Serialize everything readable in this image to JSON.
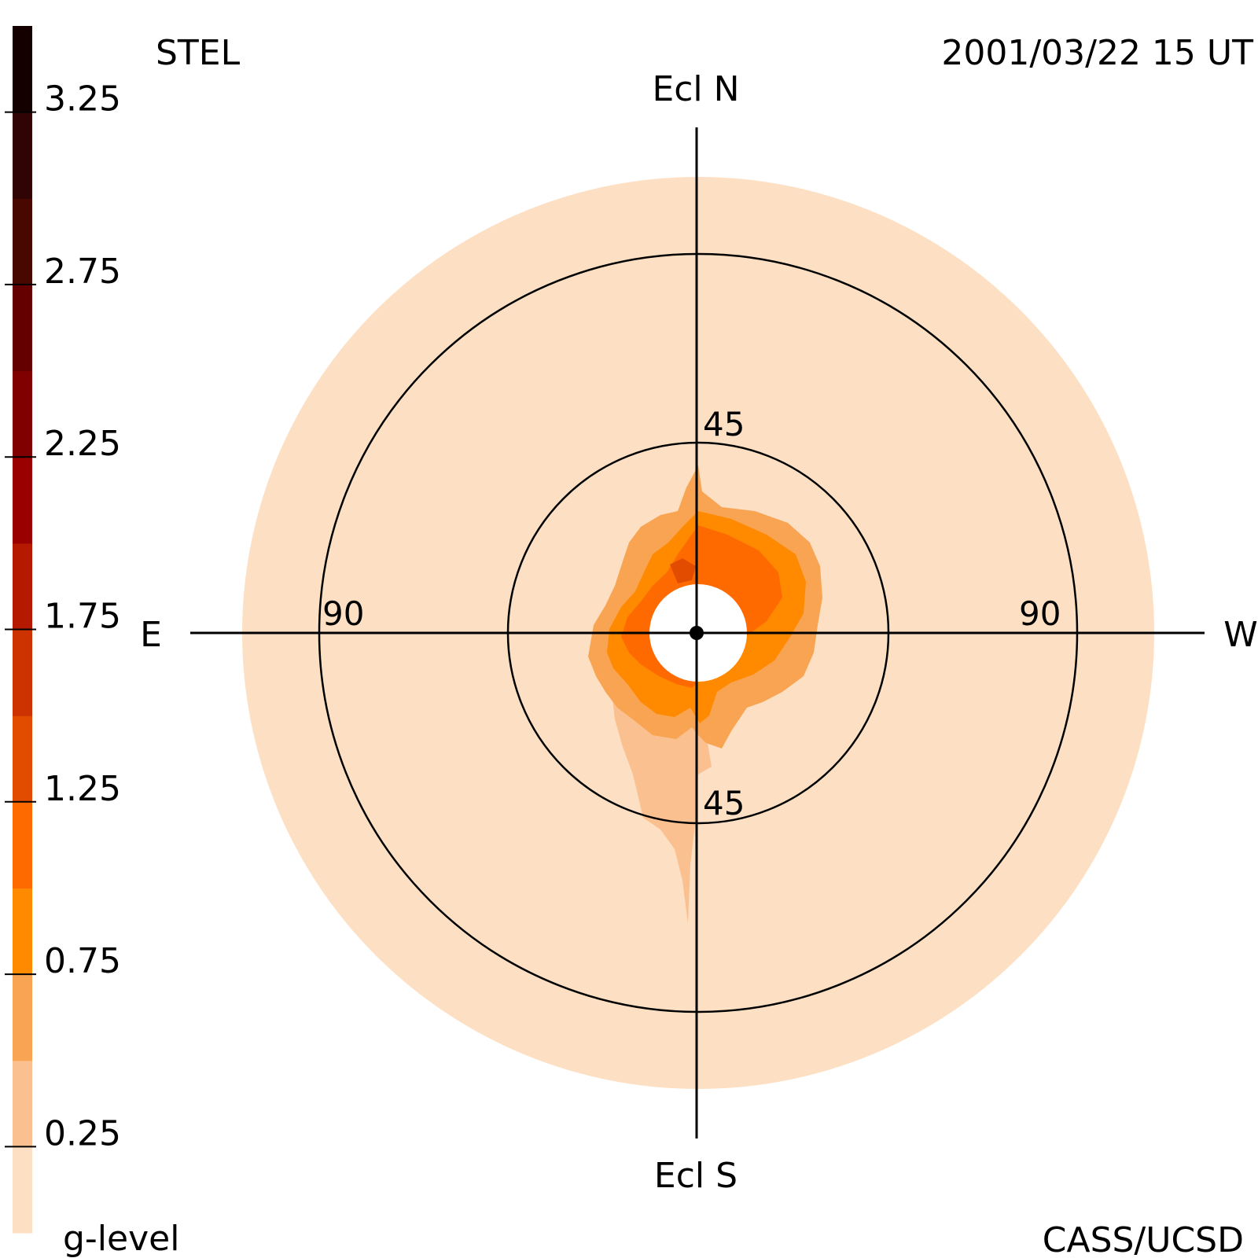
{
  "header": {
    "instrument": "STEL",
    "timestamp": "2001/03/22 15 UT",
    "credit": "CASS/UCSD"
  },
  "colorbar": {
    "title": "g-level",
    "tick_labels": [
      "3.25",
      "2.75",
      "2.25",
      "1.75",
      "1.25",
      "0.75",
      "0.25"
    ],
    "tick_values": [
      3.25,
      2.75,
      2.25,
      1.75,
      1.25,
      0.75,
      0.25
    ],
    "range": [
      0,
      3.5
    ],
    "colors": [
      "#fde0c3",
      "#fbc090",
      "#f8a453",
      "#ff8a00",
      "#ff6a00",
      "#e24c00",
      "#cc3300",
      "#b51a00",
      "#9a0000",
      "#800000",
      "#640000",
      "#480800",
      "#300404",
      "#150000"
    ]
  },
  "chart_data": {
    "type": "polar sky map",
    "orientation": {
      "top": "Ecl N",
      "bottom": "Ecl S",
      "left": "E",
      "right": "W"
    },
    "radial_unit": "elongation (deg)",
    "rings": [
      {
        "elongation": 45,
        "labels": [
          "45",
          "45"
        ]
      },
      {
        "elongation": 90,
        "labels": [
          "90",
          "90"
        ]
      }
    ],
    "outer_extent": 108,
    "occulted_radius": 12,
    "background_level": 0.1,
    "features": [
      {
        "description": "bright region around Sun, mostly north-west",
        "g_level_max": 1.3
      },
      {
        "description": "faint tail extending south",
        "g_level_max": 0.4
      }
    ]
  }
}
